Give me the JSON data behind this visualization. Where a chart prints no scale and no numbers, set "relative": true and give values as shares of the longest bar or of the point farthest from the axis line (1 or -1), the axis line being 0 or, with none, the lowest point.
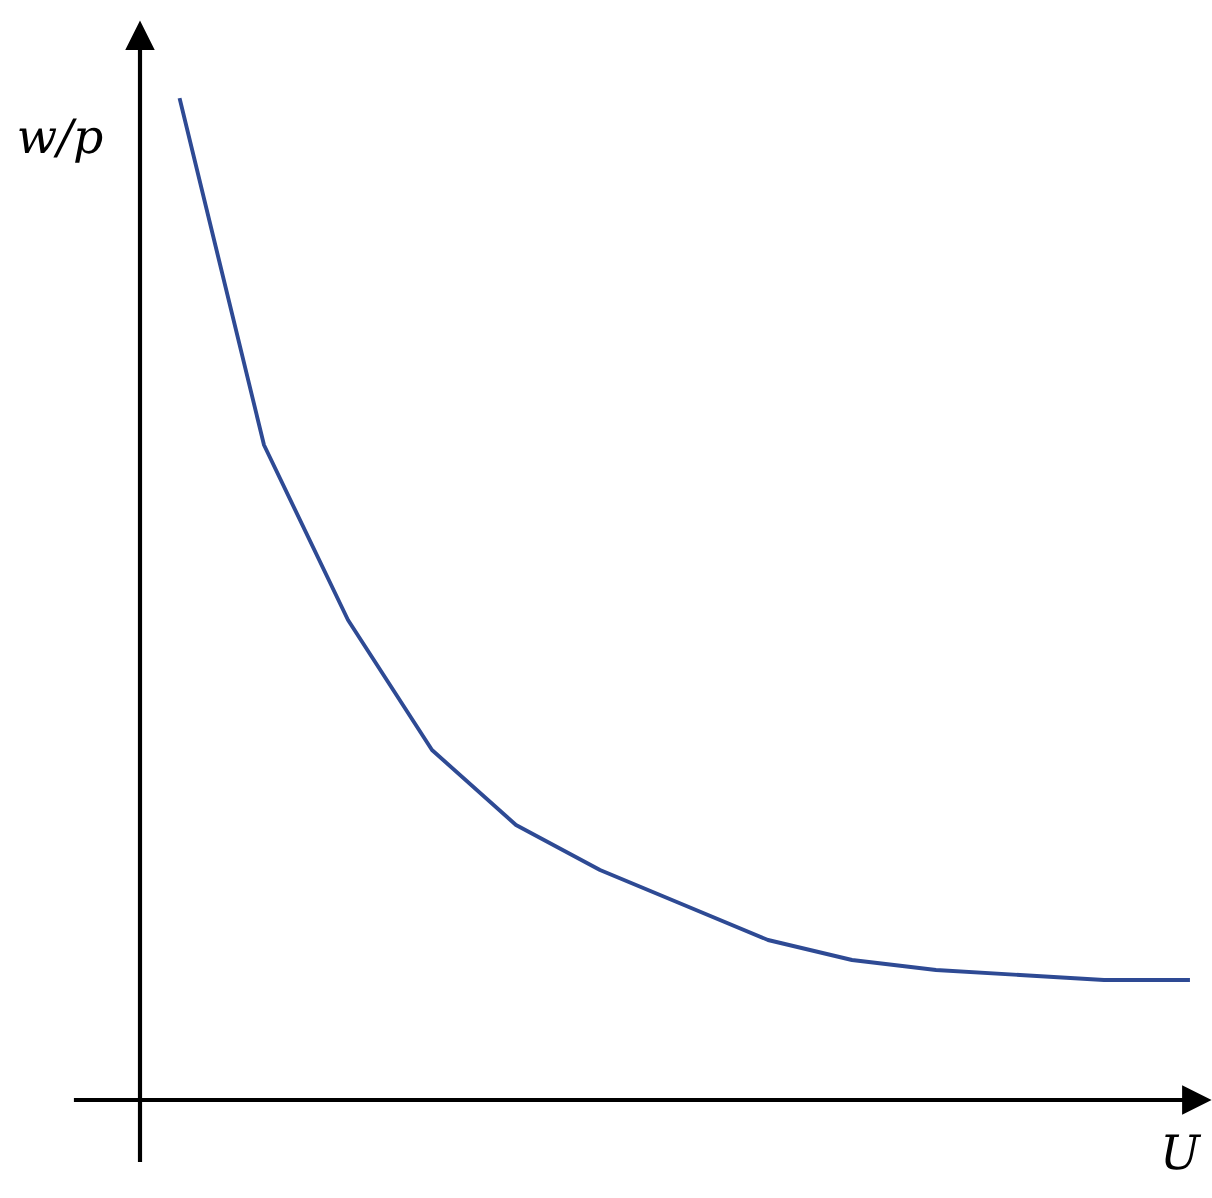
{
  "chart_data": {
    "type": "line",
    "relative": true,
    "xlabel": "U",
    "ylabel": "w/p",
    "legend": false,
    "marker": "none",
    "line_style": "solid",
    "categories": [
      null,
      null,
      null,
      null,
      null,
      null,
      null,
      null,
      null,
      null,
      null,
      null,
      null
    ],
    "series": [
      {
        "color": "#2e4a94",
        "values": [
          1.0,
          0.655,
          0.48,
          0.35,
          0.275,
          0.23,
          0.195,
          0.16,
          0.14,
          0.13,
          0.125,
          0.12,
          0.12
        ]
      }
    ]
  }
}
